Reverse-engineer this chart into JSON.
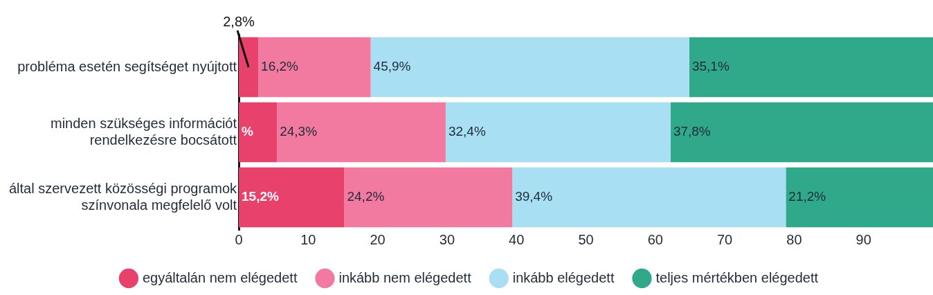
{
  "chart_data": {
    "type": "bar",
    "orientation": "horizontal",
    "stacked": true,
    "categories": [
      "probléma esetén segítséget nyújtott",
      "minden szükséges információt\nrendelkezésre bocsátott",
      "által szervezett közösségi programok\nszínvonala megfelelő volt"
    ],
    "series": [
      {
        "name": "egyáltalán nem elégedett",
        "color": "#e8416b",
        "values": [
          2.8,
          5.5,
          15.2
        ],
        "value_labels": [
          null,
          "%",
          "15,2%"
        ]
      },
      {
        "name": "inkább nem elégedett",
        "color": "#f27aa0",
        "values": [
          16.2,
          24.3,
          24.2
        ],
        "value_labels": [
          "16,2%",
          "24,3%",
          "24,2%"
        ]
      },
      {
        "name": "inkább elégedett",
        "color": "#a9dff3",
        "values": [
          45.9,
          32.4,
          39.4
        ],
        "value_labels": [
          "45,9%",
          "32,4%",
          "39,4%"
        ]
      },
      {
        "name": "teljes mértékben elégedett",
        "color": "#2fa98a",
        "values": [
          35.1,
          37.8,
          21.2
        ],
        "value_labels": [
          "35,1%",
          "37,8%",
          "21,2%"
        ]
      }
    ],
    "annotations": [
      {
        "text": "2,8%",
        "x": 2.8,
        "y": "probléma esetén segítséget nyújtott"
      }
    ],
    "xlim": [
      0,
      100
    ],
    "xticks": [
      0,
      10,
      20,
      30,
      40,
      50,
      60,
      70,
      80,
      90
    ],
    "grid": false,
    "legend": "bottom",
    "marker": "circle"
  }
}
